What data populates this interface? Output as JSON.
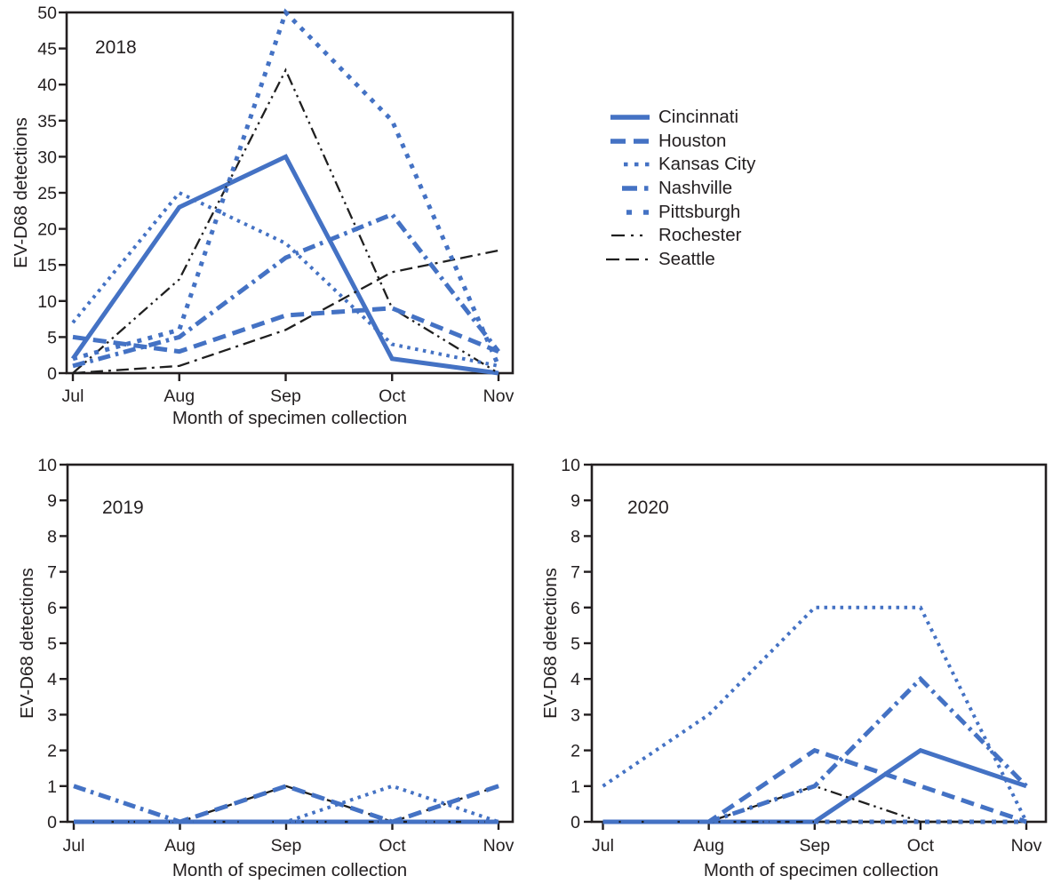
{
  "chart_data": {
    "type": "line",
    "figure_description": "EV-D68 detections by month of specimen collection at seven surveillance sites, shown in three yearly panels",
    "months": [
      "Jul",
      "Aug",
      "Sep",
      "Oct",
      "Nov"
    ],
    "xlabel": "Month of specimen collection",
    "ylabel": "EV-D68 detections",
    "colors": {
      "blue": "#4472c4",
      "black": "#1f1f1f",
      "text": "#231f20",
      "axis": "#231f20"
    },
    "legend": {
      "position": "right of top panel",
      "items": [
        {
          "id": "cincinnati",
          "label": "Cincinnati",
          "color": "#4472c4",
          "pattern": "solid-thick"
        },
        {
          "id": "houston",
          "label": "Houston",
          "color": "#4472c4",
          "pattern": "long-dash"
        },
        {
          "id": "kansas_city",
          "label": "Kansas City",
          "color": "#4472c4",
          "pattern": "dotted"
        },
        {
          "id": "nashville",
          "label": "Nashville",
          "color": "#4472c4",
          "pattern": "dash-dot"
        },
        {
          "id": "pittsburgh",
          "label": "Pittsburgh",
          "color": "#4472c4",
          "pattern": "short-dash"
        },
        {
          "id": "rochester",
          "label": "Rochester",
          "color": "#1f1f1f",
          "pattern": "dash-dot-dot"
        },
        {
          "id": "seattle",
          "label": "Seattle",
          "color": "#1f1f1f",
          "pattern": "dash-dash-dot"
        }
      ]
    },
    "charts": [
      {
        "id": "2018",
        "year_label": "2018",
        "ylabel": "EV-D68 detections",
        "xlabel": "Month of specimen collection",
        "months": [
          "Jul",
          "Aug",
          "Sep",
          "Oct",
          "Nov"
        ],
        "ymax": 50,
        "yticks": [
          0,
          5,
          10,
          15,
          20,
          25,
          30,
          35,
          40,
          45,
          50
        ],
        "grid": false,
        "series": [
          {
            "id": "cincinnati",
            "name": "Cincinnati",
            "values": [
              2,
              23,
              30,
              2,
              0
            ]
          },
          {
            "id": "houston",
            "name": "Houston",
            "values": [
              5,
              3,
              8,
              9,
              3
            ]
          },
          {
            "id": "kansas_city",
            "name": "Kansas City",
            "values": [
              7,
              25,
              18,
              4,
              1
            ]
          },
          {
            "id": "nashville",
            "name": "Nashville",
            "values": [
              1,
              5,
              16,
              22,
              3
            ]
          },
          {
            "id": "pittsburgh",
            "name": "Pittsburgh",
            "values": [
              2,
              6,
              50,
              35,
              1
            ]
          },
          {
            "id": "rochester",
            "name": "Rochester",
            "values": [
              0,
              13,
              42,
              9,
              0
            ]
          },
          {
            "id": "seattle",
            "name": "Seattle",
            "values": [
              0,
              1,
              6,
              14,
              17
            ]
          }
        ]
      },
      {
        "id": "2019",
        "year_label": "2019",
        "ylabel": "EV-D68 detections",
        "xlabel": "Month of specimen collection",
        "months": [
          "Jul",
          "Aug",
          "Sep",
          "Oct",
          "Nov"
        ],
        "ymax": 10,
        "yticks": [
          0,
          1,
          2,
          3,
          4,
          5,
          6,
          7,
          8,
          9,
          10
        ],
        "grid": false,
        "series": [
          {
            "id": "cincinnati",
            "name": "Cincinnati",
            "values": [
              0,
              0,
              0,
              0,
              0
            ]
          },
          {
            "id": "houston",
            "name": "Houston",
            "values": [
              0,
              0,
              1,
              0,
              1
            ]
          },
          {
            "id": "kansas_city",
            "name": "Kansas City",
            "values": [
              0,
              0,
              0,
              1,
              0
            ]
          },
          {
            "id": "nashville",
            "name": "Nashville",
            "values": [
              1,
              0,
              0,
              0,
              0
            ]
          },
          {
            "id": "pittsburgh",
            "name": "Pittsburgh",
            "values": [
              0,
              0,
              0,
              0,
              0
            ]
          },
          {
            "id": "rochester",
            "name": "Rochester",
            "values": [
              0,
              0,
              0,
              0,
              0
            ]
          },
          {
            "id": "seattle",
            "name": "Seattle",
            "values": [
              0,
              0,
              1,
              0,
              1
            ]
          }
        ]
      },
      {
        "id": "2020",
        "year_label": "2020",
        "ylabel": "EV-D68 detections",
        "xlabel": "Month of specimen collection",
        "months": [
          "Jul",
          "Aug",
          "Sep",
          "Oct",
          "Nov"
        ],
        "ymax": 10,
        "yticks": [
          0,
          1,
          2,
          3,
          4,
          5,
          6,
          7,
          8,
          9,
          10
        ],
        "grid": false,
        "series": [
          {
            "id": "cincinnati",
            "name": "Cincinnati",
            "values": [
              0,
              0,
              0,
              2,
              1
            ]
          },
          {
            "id": "houston",
            "name": "Houston",
            "values": [
              0,
              0,
              2,
              1,
              0
            ]
          },
          {
            "id": "kansas_city",
            "name": "Kansas City",
            "values": [
              1,
              3,
              6,
              6,
              0
            ]
          },
          {
            "id": "nashville",
            "name": "Nashville",
            "values": [
              0,
              0,
              1,
              4,
              1
            ]
          },
          {
            "id": "pittsburgh",
            "name": "Pittsburgh",
            "values": [
              0,
              0,
              0,
              0,
              0
            ]
          },
          {
            "id": "rochester",
            "name": "Rochester",
            "values": [
              0,
              0,
              1,
              0,
              0
            ]
          },
          {
            "id": "seattle",
            "name": "Seattle",
            "values": [
              0,
              0,
              0,
              0,
              0
            ]
          }
        ]
      }
    ]
  }
}
